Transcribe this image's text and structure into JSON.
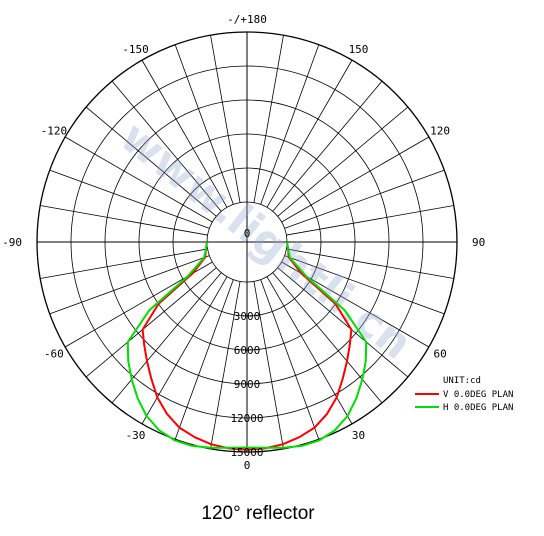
{
  "caption": "120°  reflector",
  "watermark": "www.lightli.cn",
  "chart_data": {
    "type": "polar",
    "title": "",
    "unit_label": "UNIT:cd",
    "radial_max": 15000,
    "radial_ticks": [
      3000,
      6000,
      9000,
      12000,
      15000
    ],
    "radial_tick_labels": [
      "0",
      "3000",
      "6000",
      "9000",
      "12000",
      "15000"
    ],
    "angle_labels": [
      {
        "angle": 0,
        "text": "0"
      },
      {
        "angle": 30,
        "text": "30"
      },
      {
        "angle": 60,
        "text": "60"
      },
      {
        "angle": 90,
        "text": "90"
      },
      {
        "angle": 120,
        "text": "120"
      },
      {
        "angle": 150,
        "text": "150"
      },
      {
        "angle": 180,
        "text": "-/+180"
      },
      {
        "angle": -150,
        "text": "-150"
      },
      {
        "angle": -120,
        "text": "-120"
      },
      {
        "angle": -90,
        "text": "-90"
      },
      {
        "angle": -60,
        "text": "-60"
      },
      {
        "angle": -30,
        "text": "-30"
      }
    ],
    "spoke_step_deg": 10,
    "grid": true,
    "legend_position": "bottom-right",
    "series": [
      {
        "name": "V 0.0DEG PLAN",
        "color": "#ff0000",
        "angles": [
          -90,
          -80,
          -70,
          -60,
          -55,
          -50,
          -45,
          -40,
          -35,
          -30,
          -25,
          -20,
          -15,
          -10,
          -5,
          0,
          5,
          10,
          15,
          20,
          25,
          30,
          35,
          40,
          45,
          50,
          55,
          60,
          70,
          80,
          90
        ],
        "values": [
          0,
          150,
          400,
          2000,
          6000,
          8500,
          9300,
          10200,
          11200,
          12300,
          13200,
          13900,
          14300,
          14600,
          14750,
          14800,
          14750,
          14600,
          14300,
          13900,
          13200,
          12300,
          11200,
          10200,
          9300,
          8500,
          6000,
          2000,
          400,
          150,
          0
        ]
      },
      {
        "name": "H 0.0DEG PLAN",
        "color": "#00e000",
        "angles": [
          -90,
          -80,
          -70,
          -60,
          -55,
          -50,
          -45,
          -40,
          -35,
          -30,
          -25,
          -20,
          -15,
          -10,
          -5,
          0,
          5,
          10,
          15,
          20,
          25,
          30,
          35,
          40,
          45,
          50,
          55,
          60,
          70,
          80,
          90
        ],
        "values": [
          0,
          150,
          500,
          2500,
          7000,
          10200,
          11300,
          12300,
          13300,
          14200,
          14800,
          15100,
          15100,
          14900,
          14700,
          14600,
          14700,
          14900,
          15100,
          15100,
          14800,
          14200,
          13300,
          12300,
          11300,
          10200,
          7000,
          2500,
          500,
          150,
          0
        ]
      }
    ]
  }
}
